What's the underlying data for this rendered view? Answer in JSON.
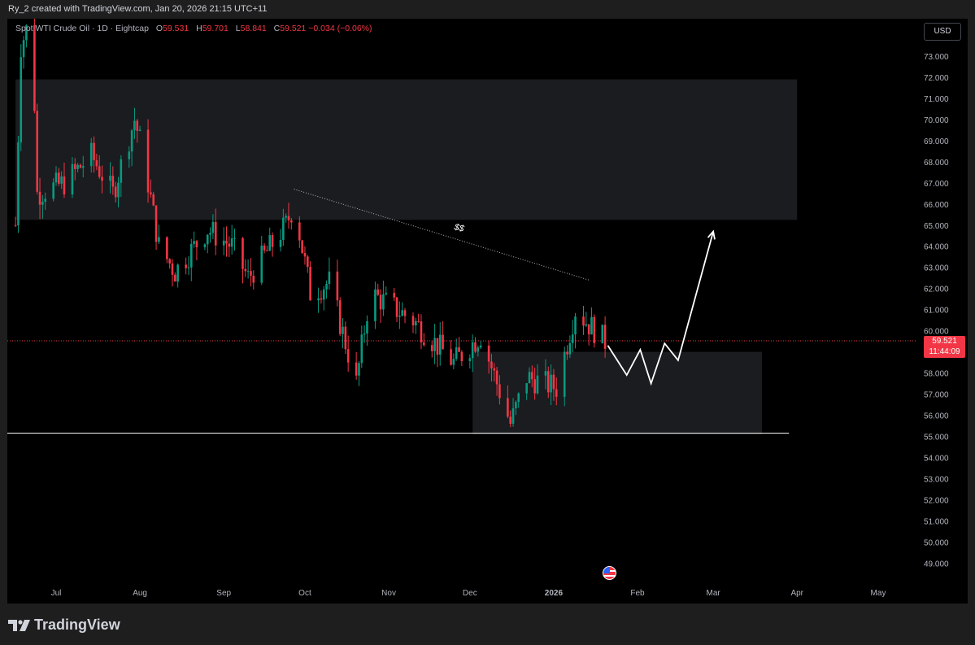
{
  "header": {
    "credit": "Ry_2 created with TradingView.com, Jan 20, 2026 21:15 UTC+11"
  },
  "legend": {
    "symbol": "Spot WTI Crude Oil · 1D · Eightcap",
    "o_label": "O",
    "o_value": "59.531",
    "h_label": "H",
    "h_value": "59.701",
    "l_label": "L",
    "l_value": "58.841",
    "c_label": "C",
    "c_value": "59.521",
    "change": "−0.034 (−0.06%)"
  },
  "currency": "USD",
  "price_tag": {
    "price": "59.521",
    "countdown": "11:44:09"
  },
  "annotation_label": "$$",
  "footer": {
    "brand": "TradingView"
  },
  "colors": {
    "up": "#089981",
    "down": "#f23645",
    "background": "#000000",
    "zone": "#1b1c1f"
  },
  "chart_data": {
    "type": "candlestick",
    "title": "",
    "ylim": [
      48,
      74
    ],
    "y_ticks": [
      "73.000",
      "72.000",
      "71.000",
      "70.000",
      "69.000",
      "68.000",
      "67.000",
      "66.000",
      "65.000",
      "64.000",
      "63.000",
      "62.000",
      "61.000",
      "60.000",
      "59.000",
      "58.000",
      "57.000",
      "56.000",
      "55.000",
      "54.000",
      "53.000",
      "52.000",
      "51.000",
      "50.000",
      "49.000"
    ],
    "x_ticks": [
      "Jul",
      "Aug",
      "Sep",
      "Oct",
      "Nov",
      "Dec",
      "2026",
      "Feb",
      "Mar",
      "Apr",
      "May"
    ],
    "x_tick_dates": [
      "2025-07-01",
      "2025-08-01",
      "2025-09-01",
      "2025-10-01",
      "2025-11-01",
      "2025-12-01",
      "2026-01-01",
      "2026-02-01",
      "2026-03-01",
      "2026-04-01",
      "2026-05-01"
    ],
    "current_price": 59.521,
    "support_level": 55.15,
    "zones": [
      {
        "from": "2025-06-16",
        "to": "2026-04-01",
        "top": 71.9,
        "bottom": 65.25
      },
      {
        "from": "2025-12-02",
        "to": "2026-03-19",
        "top": 59.0,
        "bottom": 55.1
      }
    ],
    "trendline": {
      "from": {
        "date": "2025-09-27",
        "price": 66.7
      },
      "to": {
        "date": "2026-01-14",
        "price": 62.4
      }
    },
    "projection": [
      {
        "date": "2026-01-21",
        "price": 59.3
      },
      {
        "date": "2026-01-28",
        "price": 57.9
      },
      {
        "date": "2026-02-02",
        "price": 59.1
      },
      {
        "date": "2026-02-06",
        "price": 57.5
      },
      {
        "date": "2026-02-11",
        "price": 59.4
      },
      {
        "date": "2026-02-16",
        "price": 58.6
      },
      {
        "date": "2026-03-01",
        "price": 64.7
      }
    ],
    "anchors": [
      [
        "2025-06-16",
        65.0
      ],
      [
        "2025-06-18",
        73.5
      ],
      [
        "2025-06-22",
        75.0
      ],
      [
        "2025-06-24",
        66.5
      ],
      [
        "2025-07-04",
        67.0
      ],
      [
        "2025-07-14",
        68.3
      ],
      [
        "2025-07-22",
        66.5
      ],
      [
        "2025-07-30",
        70.0
      ],
      [
        "2025-08-02",
        68.5
      ],
      [
        "2025-08-08",
        64.0
      ],
      [
        "2025-08-14",
        62.8
      ],
      [
        "2025-08-26",
        64.8
      ],
      [
        "2025-09-04",
        64.0
      ],
      [
        "2025-09-10",
        62.5
      ],
      [
        "2025-09-24",
        65.0
      ],
      [
        "2025-09-27",
        66.0
      ],
      [
        "2025-10-03",
        61.8
      ],
      [
        "2025-10-10",
        62.3
      ],
      [
        "2025-10-20",
        57.5
      ],
      [
        "2025-10-25",
        61.8
      ],
      [
        "2025-11-10",
        60.5
      ],
      [
        "2025-11-25",
        58.5
      ],
      [
        "2025-12-05",
        59.8
      ],
      [
        "2025-12-16",
        55.6
      ],
      [
        "2025-12-22",
        57.8
      ],
      [
        "2026-01-02",
        57.3
      ],
      [
        "2026-01-09",
        61.0
      ],
      [
        "2026-01-14",
        60.3
      ],
      [
        "2026-01-20",
        59.5
      ]
    ]
  }
}
